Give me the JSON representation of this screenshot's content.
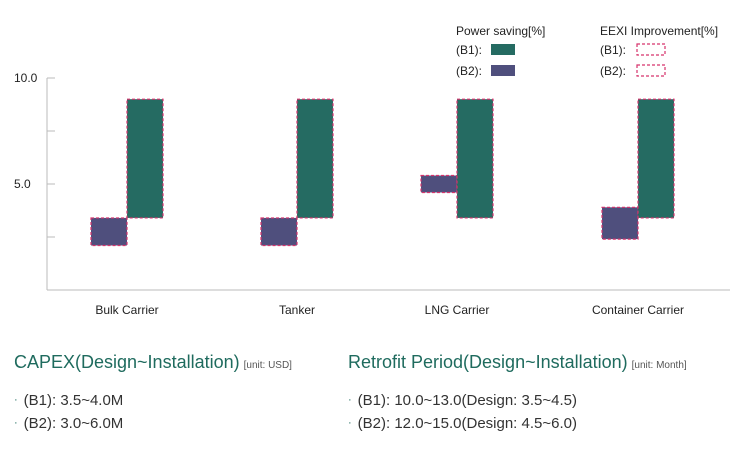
{
  "chart_data": {
    "type": "bar",
    "categories": [
      "Bulk Carrier",
      "Tanker",
      "LNG Carrier",
      "Container Carrier"
    ],
    "series": [
      {
        "name": "Power saving[%] (B2)",
        "color": "#4f4f7d",
        "ranges": [
          [
            2.1,
            3.4
          ],
          [
            2.1,
            3.4
          ],
          [
            4.6,
            5.4
          ],
          [
            2.4,
            3.9
          ]
        ]
      },
      {
        "name": "Power saving[%] (B1)",
        "color": "#256b62",
        "ranges": [
          [
            3.4,
            9.0
          ],
          [
            3.4,
            9.0
          ],
          [
            3.4,
            9.0
          ],
          [
            3.4,
            9.0
          ]
        ]
      }
    ],
    "ylim": [
      0,
      10.0
    ],
    "yticks": [
      5.0,
      10.0
    ],
    "ytick_labels": [
      "5.0",
      "10.0"
    ],
    "legend": {
      "placement": "top-right",
      "power": {
        "title": "Power saving[%]",
        "b1": "(B1):",
        "b2": "(B2):"
      },
      "eexi": {
        "title": "EEXI Improvement[%]",
        "b1": "(B1):",
        "b2": "(B2):"
      }
    },
    "eexi_border_color": "#d6336c"
  },
  "capex": {
    "title": "CAPEX(Design~Installation)",
    "unit": "[unit: USD]",
    "items": [
      "(B1): 3.5~4.0M",
      "(B2): 3.0~6.0M"
    ]
  },
  "retrofit": {
    "title": "Retrofit Period(Design~Installation)",
    "unit": "[unit: Month]",
    "items": [
      "(B1): 10.0~13.0(Design: 3.5~4.5)",
      "(B2): 12.0~15.0(Design: 4.5~6.0)"
    ]
  }
}
